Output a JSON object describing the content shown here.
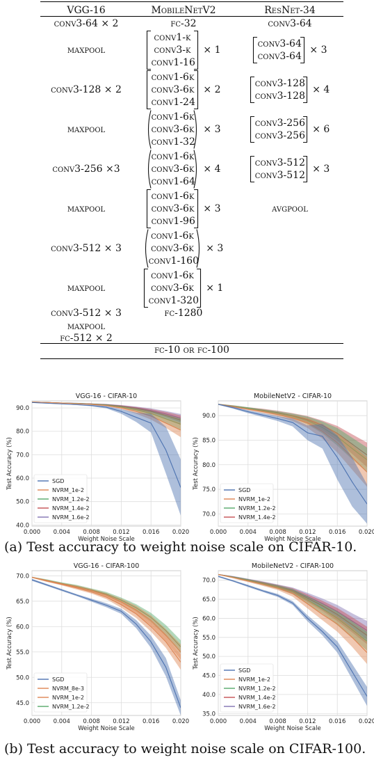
{
  "table": {
    "headers": [
      "VGG-16",
      "MobileNetV2",
      "ResNet-34"
    ],
    "rows": [
      {
        "vgg": "conv3-64 × 2",
        "mob": {
          "text": "fc-32"
        },
        "res": {
          "text": "conv3-64"
        }
      },
      {
        "vgg": "maxpool",
        "mob": {
          "lines": [
            "conv1-k",
            "conv3-k",
            "conv1-16"
          ],
          "bracket": "square",
          "mult": "× 1"
        },
        "res": {
          "lines": [
            "conv3-64",
            "conv3-64"
          ],
          "bracket": "square",
          "mult": "× 3"
        }
      },
      {
        "vgg": "conv3-128 × 2",
        "mob": {
          "lines": [
            "conv1-6k",
            "conv3-6k",
            "conv1-24"
          ],
          "bracket": "square",
          "mult": "× 2"
        },
        "res": {
          "lines": [
            "conv3-128",
            "conv3-128"
          ],
          "bracket": "square",
          "mult": "× 4"
        }
      },
      {
        "vgg": "maxpool",
        "mob": {
          "lines": [
            "conv1-6k",
            "conv3-6k",
            "conv1-32"
          ],
          "bracket": "round",
          "mult": "× 3"
        },
        "res": {
          "lines": [
            "conv3-256",
            "conv3-256"
          ],
          "bracket": "square",
          "mult": "× 6"
        }
      },
      {
        "vgg": "conv3-256 ×3",
        "mob": {
          "lines": [
            "conv1-6k",
            "conv3-6k",
            "conv1-64"
          ],
          "bracket": "round",
          "mult": "× 4"
        },
        "res": {
          "lines": [
            "conv3-512",
            "conv3-512"
          ],
          "bracket": "square",
          "mult": "× 3"
        }
      },
      {
        "vgg": "maxpool",
        "mob": {
          "lines": [
            "conv1-6k",
            "conv3-6k",
            "conv1-96"
          ],
          "bracket": "square",
          "mult": "× 3"
        },
        "res": {
          "text": "avgpool"
        }
      },
      {
        "vgg": "conv3-512 × 3",
        "mob": {
          "lines": [
            "conv1-6k",
            "conv3-6k",
            "conv1-160"
          ],
          "bracket": "round",
          "mult": "× 3"
        },
        "res": {
          "text": ""
        }
      },
      {
        "vgg": "maxpool",
        "mob": {
          "lines": [
            "conv1-6k",
            "conv3-6k",
            "conv1-320"
          ],
          "bracket": "square",
          "mult": "× 1"
        },
        "res": {
          "text": ""
        }
      },
      {
        "vgg": "conv3-512 × 3",
        "mob": {
          "text": "fc-1280"
        },
        "res": {
          "text": ""
        }
      },
      {
        "vgg": "maxpool",
        "mob": {
          "text": ""
        },
        "res": {
          "text": ""
        }
      },
      {
        "vgg": "fc-512 × 2",
        "mob": {
          "text": ""
        },
        "res": {
          "text": ""
        }
      }
    ],
    "footer": "fc-10 or fc-100"
  },
  "captions": {
    "a": "(a) Test accuracy to weight noise scale on CIFAR-10.",
    "b": "(b) Test accuracy to weight noise scale on CIFAR-100."
  },
  "colors": {
    "SGD": "#4c72b0",
    "NVRM_8e-3": "#dd8452",
    "NVRM_1e-2": "#dd8452",
    "NVRM_1.2e-2": "#55a868",
    "NVRM_1.4e-2": "#c44e52",
    "NVRM_1.6e-2": "#8172b2"
  },
  "chart_data": [
    {
      "type": "line",
      "title": "VGG-16 - CIFAR-10",
      "xlabel": "Weight Noise Scale",
      "ylabel": "Test Accuracy (%)",
      "xlim": [
        0,
        0.02
      ],
      "ylim": [
        39.5,
        93
      ],
      "xticks": [
        "0.000",
        "0.004",
        "0.008",
        "0.012",
        "0.016",
        "0.020"
      ],
      "yticks": [
        40,
        50,
        60,
        70,
        80,
        90
      ],
      "ytick_labels": [
        "40.0",
        "50.0",
        "60.0",
        "70.0",
        "80.0",
        "90.0"
      ],
      "legend_position": "lower-left",
      "grid": true,
      "x": [
        0,
        0.002,
        0.004,
        0.006,
        0.008,
        0.01,
        0.012,
        0.014,
        0.016,
        0.018,
        0.02
      ],
      "series": [
        {
          "name": "SGD",
          "values": [
            92.3,
            92.0,
            91.7,
            91.4,
            91.0,
            90.3,
            88.5,
            86.0,
            83.5,
            72.0,
            56.0
          ],
          "band": [
            0.1,
            0.1,
            0.1,
            0.2,
            0.3,
            0.5,
            1.0,
            2.0,
            4.0,
            10.0,
            12.0
          ]
        },
        {
          "name": "NVRM_1e-2",
          "values": [
            92.5,
            92.3,
            92.1,
            91.8,
            91.5,
            91.0,
            90.0,
            88.5,
            86.5,
            83.5,
            80.5
          ],
          "band": [
            0.1,
            0.1,
            0.1,
            0.1,
            0.2,
            0.3,
            0.5,
            1.0,
            1.5,
            2.0,
            3.0
          ]
        },
        {
          "name": "NVRM_1.2e-2",
          "values": [
            92.5,
            92.3,
            92.1,
            91.9,
            91.6,
            91.2,
            90.4,
            89.2,
            87.6,
            85.3,
            83.0
          ],
          "band": [
            0.1,
            0.1,
            0.1,
            0.1,
            0.2,
            0.3,
            0.5,
            0.8,
            1.2,
            1.8,
            2.5
          ]
        },
        {
          "name": "NVRM_1.4e-2",
          "values": [
            92.5,
            92.3,
            92.1,
            91.9,
            91.7,
            91.3,
            90.7,
            89.8,
            88.5,
            86.8,
            84.8
          ],
          "band": [
            0.1,
            0.1,
            0.1,
            0.1,
            0.2,
            0.3,
            0.4,
            0.6,
            1.0,
            1.5,
            2.0
          ]
        },
        {
          "name": "NVRM_1.6e-2",
          "values": [
            92.5,
            92.3,
            92.1,
            92.0,
            91.7,
            91.4,
            90.8,
            90.0,
            88.9,
            87.4,
            85.6
          ],
          "band": [
            0.1,
            0.1,
            0.1,
            0.1,
            0.2,
            0.3,
            0.4,
            0.6,
            0.9,
            1.3,
            1.8
          ]
        }
      ]
    },
    {
      "type": "line",
      "title": "MobileNetV2 - CIFAR-10",
      "xlabel": "Weight Noise Scale",
      "ylabel": "Test Accuracy (%)",
      "xlim": [
        0,
        0.02
      ],
      "ylim": [
        67.5,
        93
      ],
      "xticks": [
        "0.000",
        "0.004",
        "0.008",
        "0.012",
        "0.016",
        "0.020"
      ],
      "yticks": [
        70,
        75,
        80,
        85,
        90
      ],
      "ytick_labels": [
        "70.0",
        "75.0",
        "80.0",
        "85.0",
        "90.0"
      ],
      "legend_position": "lower-left",
      "grid": true,
      "x": [
        0,
        0.002,
        0.004,
        0.006,
        0.008,
        0.01,
        0.012,
        0.014,
        0.016,
        0.018,
        0.02
      ],
      "series": [
        {
          "name": "SGD",
          "values": [
            92.3,
            91.6,
            90.8,
            90.1,
            89.4,
            88.6,
            86.5,
            85.8,
            81.5,
            76.5,
            72.0
          ],
          "band": [
            0.1,
            0.2,
            0.3,
            0.4,
            0.5,
            0.8,
            1.5,
            2.5,
            4.5,
            5.0,
            4.0
          ]
        },
        {
          "name": "NVRM_1e-2",
          "values": [
            92.3,
            91.8,
            91.3,
            90.8,
            90.2,
            89.5,
            88.5,
            86.8,
            84.5,
            81.5,
            78.5
          ],
          "band": [
            0.1,
            0.2,
            0.2,
            0.3,
            0.4,
            0.6,
            1.0,
            1.5,
            2.0,
            2.5,
            3.0
          ]
        },
        {
          "name": "NVRM_1.2e-2",
          "values": [
            92.3,
            91.9,
            91.5,
            91.0,
            90.5,
            89.9,
            89.0,
            87.6,
            85.7,
            83.3,
            81.0
          ],
          "band": [
            0.1,
            0.2,
            0.2,
            0.3,
            0.4,
            0.5,
            0.8,
            1.2,
            1.8,
            2.2,
            2.5
          ]
        },
        {
          "name": "NVRM_1.4e-2",
          "values": [
            92.3,
            91.9,
            91.5,
            91.1,
            90.6,
            90.0,
            89.2,
            88.0,
            86.4,
            84.2,
            82.0
          ],
          "band": [
            0.1,
            0.2,
            0.2,
            0.3,
            0.4,
            0.5,
            0.7,
            1.0,
            1.5,
            2.0,
            2.5
          ]
        }
      ]
    },
    {
      "type": "line",
      "title": "VGG-16 - CIFAR-100",
      "xlabel": "Weight Noise Scale",
      "ylabel": "Test Accuracy (%)",
      "xlim": [
        0,
        0.02
      ],
      "ylim": [
        42.5,
        71
      ],
      "xticks": [
        "0.000",
        "0.004",
        "0.008",
        "0.012",
        "0.016",
        "0.020"
      ],
      "yticks": [
        45,
        50,
        55,
        60,
        65,
        70
      ],
      "ytick_labels": [
        "45.0",
        "50.0",
        "55.0",
        "60.0",
        "65.0",
        "70.0"
      ],
      "legend_position": "lower-left",
      "grid": true,
      "x": [
        0,
        0.002,
        0.004,
        0.006,
        0.008,
        0.01,
        0.012,
        0.014,
        0.016,
        0.018,
        0.02
      ],
      "series": [
        {
          "name": "SGD",
          "values": [
            69.2,
            68.2,
            67.2,
            66.2,
            65.2,
            64.2,
            63.0,
            60.5,
            57.0,
            52.0,
            44.0
          ],
          "band": [
            0.2,
            0.2,
            0.2,
            0.2,
            0.3,
            0.4,
            0.5,
            0.8,
            1.2,
            1.8,
            1.5
          ]
        },
        {
          "name": "NVRM_8e-3",
          "values": [
            69.7,
            69.0,
            68.3,
            67.6,
            66.8,
            65.8,
            64.3,
            62.5,
            60.0,
            57.0,
            53.0
          ],
          "band": [
            0.1,
            0.2,
            0.2,
            0.3,
            0.3,
            0.4,
            0.6,
            0.8,
            1.0,
            1.2,
            1.5
          ]
        },
        {
          "name": "NVRM_1e-2",
          "values": [
            69.7,
            69.0,
            68.4,
            67.8,
            67.1,
            66.2,
            64.9,
            63.3,
            61.2,
            58.3,
            55.0
          ],
          "band": [
            0.1,
            0.2,
            0.2,
            0.3,
            0.3,
            0.4,
            0.6,
            0.8,
            1.0,
            1.2,
            1.5
          ]
        },
        {
          "name": "NVRM_1.2e-2",
          "values": [
            69.7,
            69.1,
            68.5,
            67.9,
            67.2,
            66.4,
            65.2,
            63.7,
            61.8,
            59.2,
            56.0
          ],
          "band": [
            0.1,
            0.2,
            0.2,
            0.3,
            0.3,
            0.4,
            0.5,
            0.7,
            0.9,
            1.1,
            1.3
          ]
        }
      ]
    },
    {
      "type": "line",
      "title": "MobileNetV2 - CIFAR-100",
      "xlabel": "Weight Noise Scale",
      "ylabel": "Test Accuracy (%)",
      "xlim": [
        0,
        0.02
      ],
      "ylim": [
        34.5,
        72.5
      ],
      "xticks": [
        "0.000",
        "0.004",
        "0.008",
        "0.012",
        "0.016",
        "0.020"
      ],
      "yticks": [
        35,
        40,
        45,
        50,
        55,
        60,
        65,
        70
      ],
      "ytick_labels": [
        "35.0",
        "40.0",
        "45.0",
        "50.0",
        "55.0",
        "60.0",
        "65.0",
        "70.0"
      ],
      "legend_position": "lower-left",
      "grid": true,
      "x": [
        0,
        0.002,
        0.004,
        0.006,
        0.008,
        0.01,
        0.012,
        0.014,
        0.016,
        0.018,
        0.02
      ],
      "series": [
        {
          "name": "SGD",
          "values": [
            71.0,
            69.8,
            68.5,
            67.2,
            66.0,
            64.0,
            60.0,
            56.5,
            52.5,
            46.0,
            39.5
          ],
          "band": [
            0.2,
            0.2,
            0.3,
            0.3,
            0.4,
            0.5,
            0.8,
            1.0,
            1.5,
            2.0,
            2.5
          ]
        },
        {
          "name": "NVRM_1e-2",
          "values": [
            71.5,
            70.7,
            69.8,
            68.9,
            67.9,
            66.5,
            63.8,
            61.0,
            58.5,
            55.0,
            51.0
          ],
          "band": [
            0.1,
            0.2,
            0.3,
            0.4,
            0.5,
            0.8,
            1.2,
            1.5,
            2.0,
            2.5,
            3.0
          ]
        },
        {
          "name": "NVRM_1.2e-2",
          "values": [
            71.5,
            70.8,
            70.0,
            69.1,
            68.2,
            67.0,
            64.8,
            62.5,
            60.0,
            57.0,
            54.0
          ],
          "band": [
            0.1,
            0.2,
            0.3,
            0.4,
            0.5,
            0.7,
            1.0,
            1.3,
            1.8,
            2.2,
            2.5
          ]
        },
        {
          "name": "NVRM_1.4e-2",
          "values": [
            71.5,
            70.8,
            70.0,
            69.2,
            68.3,
            67.2,
            65.3,
            63.3,
            61.0,
            58.3,
            55.5
          ],
          "band": [
            0.1,
            0.2,
            0.3,
            0.4,
            0.5,
            0.7,
            1.0,
            1.3,
            1.7,
            2.0,
            2.3
          ]
        },
        {
          "name": "NVRM_1.6e-2",
          "values": [
            71.5,
            70.9,
            70.1,
            69.3,
            68.4,
            67.4,
            65.7,
            63.9,
            61.8,
            59.3,
            56.8
          ],
          "band": [
            0.1,
            0.2,
            0.3,
            0.4,
            0.5,
            0.7,
            1.0,
            1.3,
            1.7,
            2.0,
            2.5
          ]
        }
      ]
    }
  ]
}
